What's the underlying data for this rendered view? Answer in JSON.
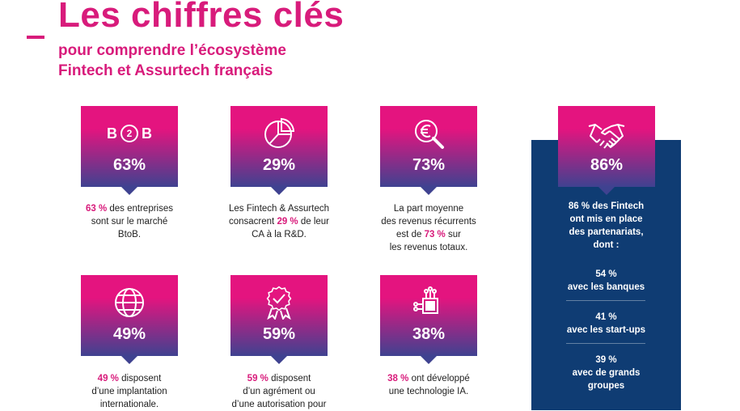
{
  "header": {
    "title": "Les chiffres clés",
    "subtitle_line1": "pour comprendre l’écosystème",
    "subtitle_line2": "Fintech et Assurtech français"
  },
  "colors": {
    "accent": "#d81b7b",
    "navy": "#0f3c73",
    "gradient_bottom": "#3f4290"
  },
  "cards": [
    {
      "icon": "b2b-icon",
      "icon_b_left": "B",
      "icon_num": "2",
      "icon_b_right": "B",
      "value": "63%",
      "caption": {
        "hl": "63 %",
        "l1": " des entreprises",
        "l2": "sont sur le marché",
        "l3": "BtoB."
      }
    },
    {
      "icon": "pie-chart-icon",
      "value": "29%",
      "caption": {
        "l1": "Les Fintech & Assurtech",
        "l2a": "consacrent ",
        "hl": "29 %",
        "l2b": " de leur",
        "l3": "CA à la R&D."
      }
    },
    {
      "icon": "euro-magnifier-icon",
      "value": "73%",
      "caption": {
        "l1": "La part moyenne",
        "l2": "des revenus récurrents",
        "l3a": "est de ",
        "hl": "73 %",
        "l3b": " sur",
        "l4": "les revenus totaux."
      }
    },
    {
      "icon": "globe-icon",
      "value": "49%",
      "caption": {
        "hl": "49 %",
        "l1": " disposent",
        "l2": "d’une implantation",
        "l3": "internationale."
      }
    },
    {
      "icon": "award-check-icon",
      "value": "59%",
      "caption": {
        "hl": "59 %",
        "l1": " disposent",
        "l2": "d’un agrément ou",
        "l3": "d’une autorisation pour"
      }
    },
    {
      "icon": "ai-chip-icon",
      "value": "38%",
      "caption": {
        "hl": "38 %",
        "l1": " ont développé",
        "l2": "une technologie IA."
      }
    }
  ],
  "partnerships": {
    "icon": "handshake-icon",
    "value": "86%",
    "intro": {
      "hl": "86 %",
      "l1": " des Fintech",
      "l2": "ont mis en place",
      "l3": "des partenariats,",
      "l4": "dont :"
    },
    "items": [
      {
        "pct": "54 %",
        "label": "avec les banques"
      },
      {
        "pct": "41 %",
        "label": "avec les start-ups"
      },
      {
        "pct": "39 %",
        "label": "avec de grands",
        "label2": "groupes"
      }
    ]
  }
}
